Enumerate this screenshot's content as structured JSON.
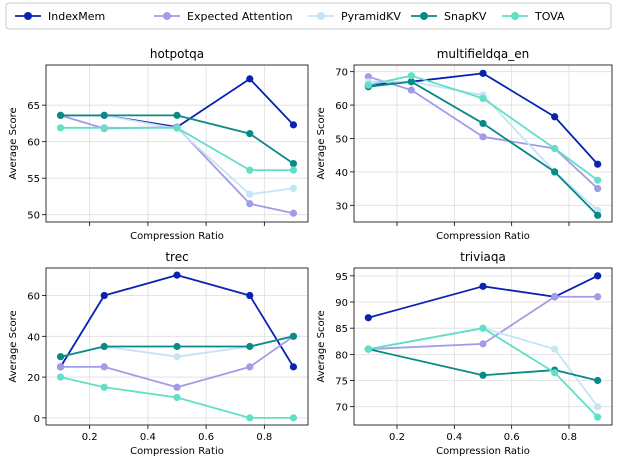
{
  "legend": {
    "placement": "top-center",
    "items": [
      {
        "label": "IndexMem",
        "color": "#0a22b0"
      },
      {
        "label": "Expected Attention",
        "color": "#a39be8"
      },
      {
        "label": "PyramidKV",
        "color": "#c4e4f7"
      },
      {
        "label": "SnapKV",
        "color": "#088a86"
      },
      {
        "label": "TOVA",
        "color": "#62dfc6"
      }
    ]
  },
  "chart_data": [
    {
      "type": "line",
      "title": "hotpotqa",
      "xlabel": "Compression Ratio",
      "ylabel": "Average Score",
      "xlim": [
        0.05,
        0.95
      ],
      "ylim": [
        49.0,
        70.5
      ],
      "xticks": [
        0.2,
        0.4,
        0.6,
        0.8
      ],
      "xtick_labels_shown": false,
      "yticks": [
        50,
        55,
        60,
        65
      ],
      "grid": true,
      "x": [
        0.1,
        0.25,
        0.5,
        0.75,
        0.9
      ],
      "series": [
        {
          "name": "IndexMem",
          "values": [
            63.6,
            63.6,
            62.0,
            68.6,
            62.3
          ]
        },
        {
          "name": "Expected Attention",
          "values": [
            63.6,
            61.8,
            62.0,
            51.5,
            50.2
          ]
        },
        {
          "name": "PyramidKV",
          "values": [
            63.6,
            63.6,
            61.8,
            52.8,
            53.6
          ]
        },
        {
          "name": "SnapKV",
          "values": [
            63.6,
            63.6,
            63.6,
            61.1,
            57.0
          ]
        },
        {
          "name": "TOVA",
          "values": [
            61.9,
            61.9,
            61.9,
            56.1,
            56.1
          ]
        }
      ]
    },
    {
      "type": "line",
      "title": "multifieldqa_en",
      "xlabel": "Compression Ratio",
      "ylabel": "Average Score",
      "xlim": [
        0.05,
        0.95
      ],
      "ylim": [
        25.0,
        72.0
      ],
      "xticks": [
        0.2,
        0.4,
        0.6,
        0.8
      ],
      "xtick_labels_shown": false,
      "yticks": [
        30,
        40,
        50,
        60,
        70
      ],
      "grid": true,
      "x": [
        0.1,
        0.25,
        0.5,
        0.75,
        0.9
      ],
      "series": [
        {
          "name": "IndexMem",
          "values": [
            66.0,
            67.0,
            69.5,
            56.5,
            42.3
          ]
        },
        {
          "name": "Expected Attention",
          "values": [
            68.5,
            64.5,
            50.5,
            47.0,
            35.0
          ]
        },
        {
          "name": "PyramidKV",
          "values": [
            67.0,
            67.0,
            63.0,
            40.0,
            28.5
          ]
        },
        {
          "name": "SnapKV",
          "values": [
            65.5,
            67.0,
            54.5,
            40.0,
            27.0
          ]
        },
        {
          "name": "TOVA",
          "values": [
            66.0,
            68.8,
            62.0,
            47.0,
            37.5
          ]
        }
      ]
    },
    {
      "type": "line",
      "title": "trec",
      "xlabel": "Compression Ratio",
      "ylabel": "Average Score",
      "xlim": [
        0.05,
        0.95
      ],
      "ylim": [
        -3.5,
        73.5
      ],
      "xticks": [
        0.2,
        0.4,
        0.6,
        0.8
      ],
      "xtick_labels_shown": true,
      "yticks": [
        0,
        20,
        40,
        60
      ],
      "grid": true,
      "x": [
        0.1,
        0.25,
        0.5,
        0.75,
        0.9
      ],
      "series": [
        {
          "name": "IndexMem",
          "values": [
            25,
            60,
            70,
            60,
            25
          ]
        },
        {
          "name": "Expected Attention",
          "values": [
            25,
            25,
            15,
            25,
            40
          ]
        },
        {
          "name": "PyramidKV",
          "values": [
            30,
            35,
            30,
            35,
            40
          ]
        },
        {
          "name": "SnapKV",
          "values": [
            30,
            35,
            35,
            35,
            40
          ]
        },
        {
          "name": "TOVA",
          "values": [
            20,
            15,
            10,
            0,
            0
          ]
        }
      ]
    },
    {
      "type": "line",
      "title": "triviaqa",
      "xlabel": "Compression Ratio",
      "ylabel": "Average Score",
      "xlim": [
        0.05,
        0.95
      ],
      "ylim": [
        66.5,
        96.5
      ],
      "xticks": [
        0.2,
        0.4,
        0.6,
        0.8
      ],
      "xtick_labels_shown": true,
      "yticks": [
        70,
        75,
        80,
        85,
        90,
        95
      ],
      "grid": true,
      "x": [
        0.1,
        0.5,
        0.75,
        0.9
      ],
      "series": [
        {
          "name": "IndexMem",
          "values": [
            87,
            93,
            91,
            95
          ]
        },
        {
          "name": "Expected Attention",
          "values": [
            81,
            82,
            91,
            91
          ]
        },
        {
          "name": "PyramidKV",
          "values": [
            81,
            85,
            81,
            70
          ]
        },
        {
          "name": "SnapKV",
          "values": [
            81,
            76,
            77,
            75
          ]
        },
        {
          "name": "TOVA",
          "values": [
            81,
            85,
            76.5,
            68
          ]
        }
      ]
    }
  ]
}
